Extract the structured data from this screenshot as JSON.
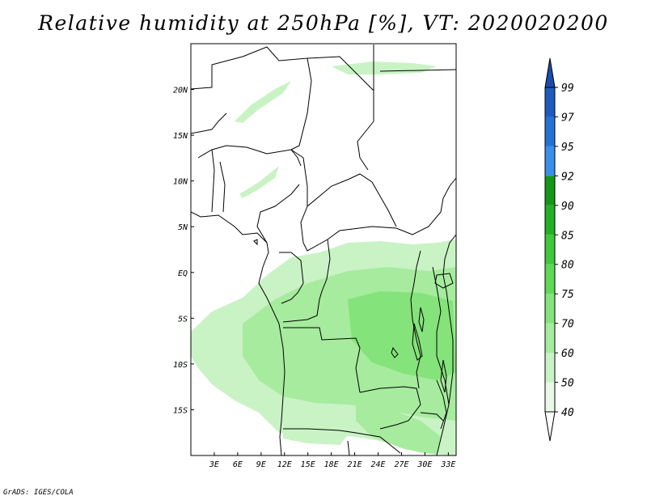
{
  "title": "Relative humidity at 250hPa [%], VT: 2020020200",
  "footer": "GrADS: IGES/COLA",
  "map": {
    "lon_range": [
      0,
      34
    ],
    "lat_range": [
      -20,
      25
    ],
    "lon_ticks": [
      {
        "value": 3,
        "label": "3E"
      },
      {
        "value": 6,
        "label": "6E"
      },
      {
        "value": 9,
        "label": "9E"
      },
      {
        "value": 12,
        "label": "12E"
      },
      {
        "value": 15,
        "label": "15E"
      },
      {
        "value": 18,
        "label": "18E"
      },
      {
        "value": 21,
        "label": "21E"
      },
      {
        "value": 24,
        "label": "24E"
      },
      {
        "value": 27,
        "label": "27E"
      },
      {
        "value": 30,
        "label": "30E"
      },
      {
        "value": 33,
        "label": "33E"
      }
    ],
    "lat_ticks": [
      {
        "value": 20,
        "label": "20N"
      },
      {
        "value": 15,
        "label": "15N"
      },
      {
        "value": 10,
        "label": "10N"
      },
      {
        "value": 5,
        "label": "5N"
      },
      {
        "value": 0,
        "label": "EQ"
      },
      {
        "value": -5,
        "label": "5S"
      },
      {
        "value": -10,
        "label": "10S"
      },
      {
        "value": -15,
        "label": "15S"
      }
    ]
  },
  "colorbar": {
    "levels": [
      "40",
      "50",
      "60",
      "70",
      "75",
      "80",
      "85",
      "90",
      "92",
      "95",
      "97",
      "99"
    ],
    "colors": [
      "#ffffff",
      "#e8fae6",
      "#c9f3c4",
      "#a6eb9e",
      "#84e37a",
      "#5fd955",
      "#3ec83a",
      "#23b024",
      "#169616",
      "#3a8fe8",
      "#2472d6",
      "#1d5cbf",
      "#1a4cad"
    ]
  }
}
